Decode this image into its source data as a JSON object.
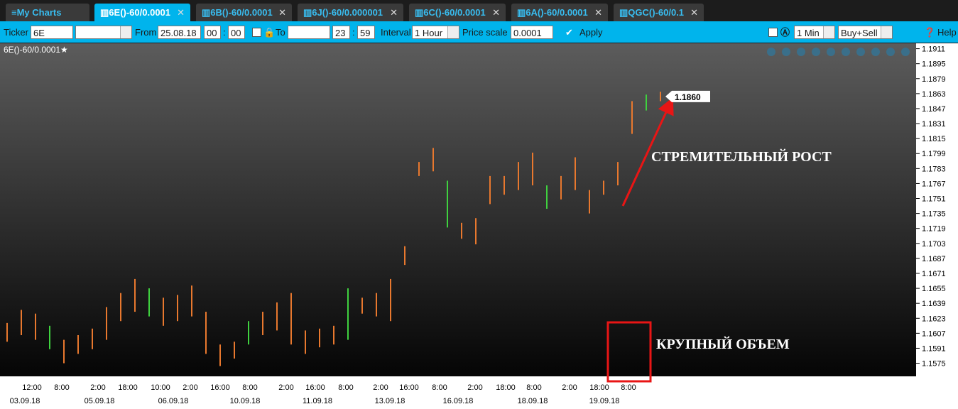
{
  "tabs": [
    "My Charts",
    "6E()-60/0.0001",
    "6B()-60/0.0001",
    "6J()-60/0.000001",
    "6C()-60/0.0001",
    "6A()-60/0.0001",
    "QGC()-60/0.1"
  ],
  "toolbar": {
    "ticker_label": "Ticker",
    "ticker": "6E",
    "from_label": "From",
    "from_date": "25.08.18",
    "from_hour": "00",
    "from_min": "00",
    "to_label": "To",
    "to_hour": "23",
    "to_min": "59",
    "interval_label": "Interval",
    "interval": "1 Hour",
    "price_scale_label": "Price scale",
    "price_scale": "0.0001",
    "apply": "Apply",
    "min_select": "1 Min",
    "side_select": "Buy+Sell",
    "help": "Help"
  },
  "chart_data": {
    "type": "ohlc",
    "title": "6E()-60/0.0001★",
    "color": "#e8782e",
    "low": [
      1.1598,
      1.1605,
      1.16,
      1.159,
      1.1575,
      1.1585,
      1.159,
      1.16,
      1.162,
      1.163,
      1.1625,
      1.1615,
      1.162,
      1.1625,
      1.1585,
      1.1572,
      1.158,
      1.1595,
      1.1605,
      1.161,
      1.1595,
      1.1585,
      1.1592,
      1.1595,
      1.16,
      1.1628,
      1.1625,
      1.162,
      1.168,
      1.1775,
      1.178,
      1.172,
      1.1708,
      1.1702,
      1.1745,
      1.1755,
      1.176,
      1.1765,
      1.174,
      1.175,
      1.176,
      1.1735,
      1.1755,
      1.1765,
      1.182,
      1.1845,
      1.1855
    ],
    "high": [
      1.1618,
      1.1632,
      1.1628,
      1.1615,
      1.16,
      1.1605,
      1.1612,
      1.1635,
      1.165,
      1.1665,
      1.1655,
      1.1645,
      1.1648,
      1.1658,
      1.163,
      1.1595,
      1.1598,
      1.162,
      1.163,
      1.164,
      1.165,
      1.161,
      1.1612,
      1.1615,
      1.1655,
      1.1645,
      1.165,
      1.1665,
      1.17,
      1.179,
      1.1805,
      1.177,
      1.1725,
      1.173,
      1.1775,
      1.1775,
      1.179,
      1.18,
      1.1765,
      1.1775,
      1.1795,
      1.176,
      1.177,
      1.179,
      1.1855,
      1.1862,
      1.1865
    ],
    "last_price": {
      "value": 1.186,
      "label": "1.1860"
    },
    "ylim": [
      1.1561,
      1.1916
    ],
    "yticks": [
      1.1911,
      1.1895,
      1.1879,
      1.1863,
      1.1847,
      1.1831,
      1.1815,
      1.1799,
      1.1783,
      1.1767,
      1.1751,
      1.1735,
      1.1719,
      1.1703,
      1.1687,
      1.1671,
      1.1655,
      1.1639,
      1.1623,
      1.1607,
      1.1591,
      1.1575
    ],
    "time_labels": [
      "12:00",
      "8:00",
      "2:00",
      "18:00",
      "10:00",
      "2:00",
      "16:00",
      "8:00",
      "2:00",
      "16:00",
      "8:00",
      "2:00",
      "16:00",
      "8:00",
      "2:00",
      "18:00",
      "8:00",
      "2:00",
      "18:00",
      "8:00"
    ],
    "date_labels": [
      "03.09.18",
      "05.09.18",
      "06.09.18",
      "10.09.18",
      "11.09.18",
      "13.09.18",
      "16.09.18",
      "18.09.18",
      "19.09.18"
    ],
    "annotations": [
      "СТРЕМИТЕЛЬНЫЙ РОСТ",
      "КРУПНЫЙ ОБЪЕМ"
    ]
  }
}
